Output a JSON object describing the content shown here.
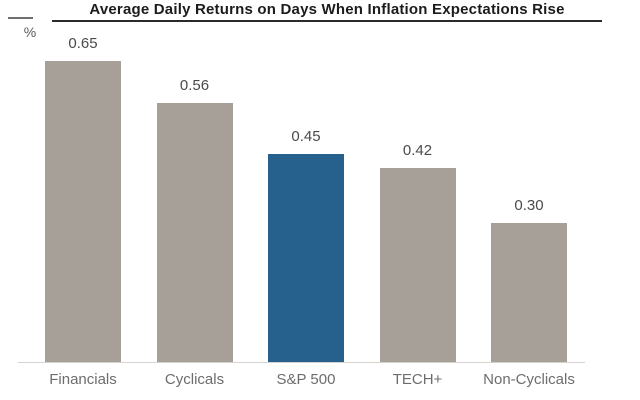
{
  "chart_data": {
    "type": "bar",
    "title": "Average Daily Returns on Days When Inflation Expectations Rise",
    "unit": "%",
    "categories": [
      "Financials",
      "Cyclicals",
      "S&P 500",
      "TECH+",
      "Non-Cyclicals"
    ],
    "values": [
      0.65,
      0.56,
      0.45,
      0.42,
      0.3
    ],
    "value_labels": [
      "0.65",
      "0.56",
      "0.45",
      "0.42",
      "0.30"
    ],
    "highlight_index": 2,
    "highlight_category": "S&P 500",
    "colors": {
      "bar_default": "#a7a099",
      "bar_highlight": "#26618e",
      "title_text": "#1c1c1c",
      "value_label_text": "#4a4a4a",
      "category_label_text": "#6d6d6d",
      "axis_line": "#d5d2cf"
    },
    "ylim": [
      0,
      0.7
    ],
    "grid": false,
    "legend": false,
    "xlabel": "",
    "ylabel": "%"
  }
}
